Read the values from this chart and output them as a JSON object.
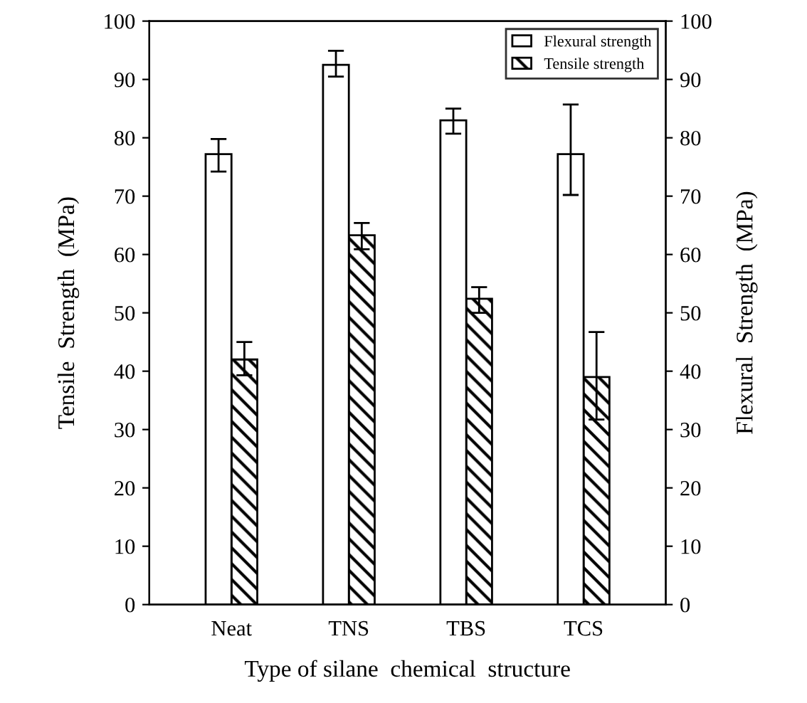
{
  "chart_data": {
    "type": "bar",
    "xlabel": "Type of silane  chemical  structure",
    "ylabel": "Tensile  Strength  (MPa)",
    "y2label": "Flexural  Strength  (MPa)",
    "categories": [
      "Neat",
      "TNS",
      "TBS",
      "TCS"
    ],
    "series": [
      {
        "name": "Flexural strength",
        "color": "#ffffff",
        "axis": "y2",
        "values": [
          77.2,
          92.5,
          83,
          77.2
        ],
        "errors": [
          [
            74.2,
            79.8
          ],
          [
            90.5,
            94.9
          ],
          [
            80.7,
            85
          ],
          [
            70.2,
            85.7
          ]
        ]
      },
      {
        "name": "Tensile strength",
        "color": "#000000",
        "axis": "y",
        "values": [
          42,
          63.3,
          52.4,
          39
        ],
        "errors": [
          [
            39.3,
            45
          ],
          [
            60.9,
            65.4
          ],
          [
            50,
            54.4
          ],
          [
            31.7,
            46.7
          ]
        ]
      }
    ],
    "ylim": [
      0,
      100
    ],
    "yticks": [
      0,
      10,
      20,
      30,
      40,
      50,
      60,
      70,
      80,
      90,
      100
    ],
    "y2lim": [
      0,
      100
    ],
    "y2ticks": [
      0,
      10,
      20,
      30,
      40,
      50,
      60,
      70,
      80,
      90,
      100
    ],
    "legend": "top right",
    "grid": false
  }
}
